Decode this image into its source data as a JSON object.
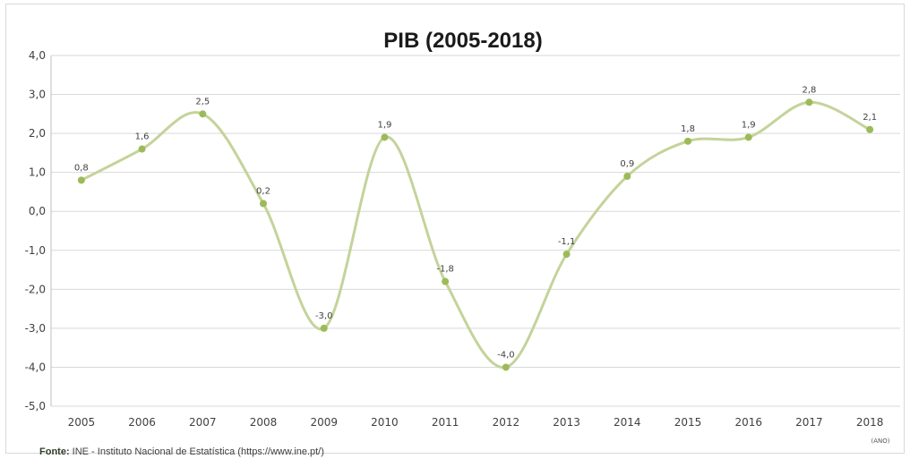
{
  "chart_data": {
    "type": "line",
    "title": "PIB (2005-2018)",
    "categories": [
      "2005",
      "2006",
      "2007",
      "2008",
      "2009",
      "2010",
      "2011",
      "2012",
      "2013",
      "2014",
      "2015",
      "2016",
      "2017",
      "2018"
    ],
    "values": [
      0.8,
      1.6,
      2.5,
      0.2,
      -3.0,
      1.9,
      -1.8,
      -4.0,
      -1.1,
      0.9,
      1.8,
      1.9,
      2.8,
      2.1
    ],
    "data_labels": [
      "0,8",
      "1,6",
      "2,5",
      "0,2",
      "-3,0",
      "1,9",
      "-1,8",
      "-4,0",
      "-1,1",
      "0,9",
      "1,8",
      "1,9",
      "2,8",
      "2,1"
    ],
    "ylim": [
      -5,
      4
    ],
    "yticks": [
      4,
      3,
      2,
      1,
      0,
      -1,
      -2,
      -3,
      -4,
      -5
    ],
    "ytick_labels": [
      "4,0",
      "3,0",
      "2,0",
      "1,0",
      "0,0",
      "-1,0",
      "-2,0",
      "-3,0",
      "-4,0",
      "-5,0"
    ],
    "xlabel": "(ANO)",
    "ylabel": "",
    "grid": true,
    "line_style": "smooth",
    "line_color": "#c4d39a",
    "marker_color": "#9bbb59"
  },
  "source": {
    "label": "Fonte:",
    "text": " INE - Instituto Nacional de Estatística (https://www.ine.pt/)"
  }
}
